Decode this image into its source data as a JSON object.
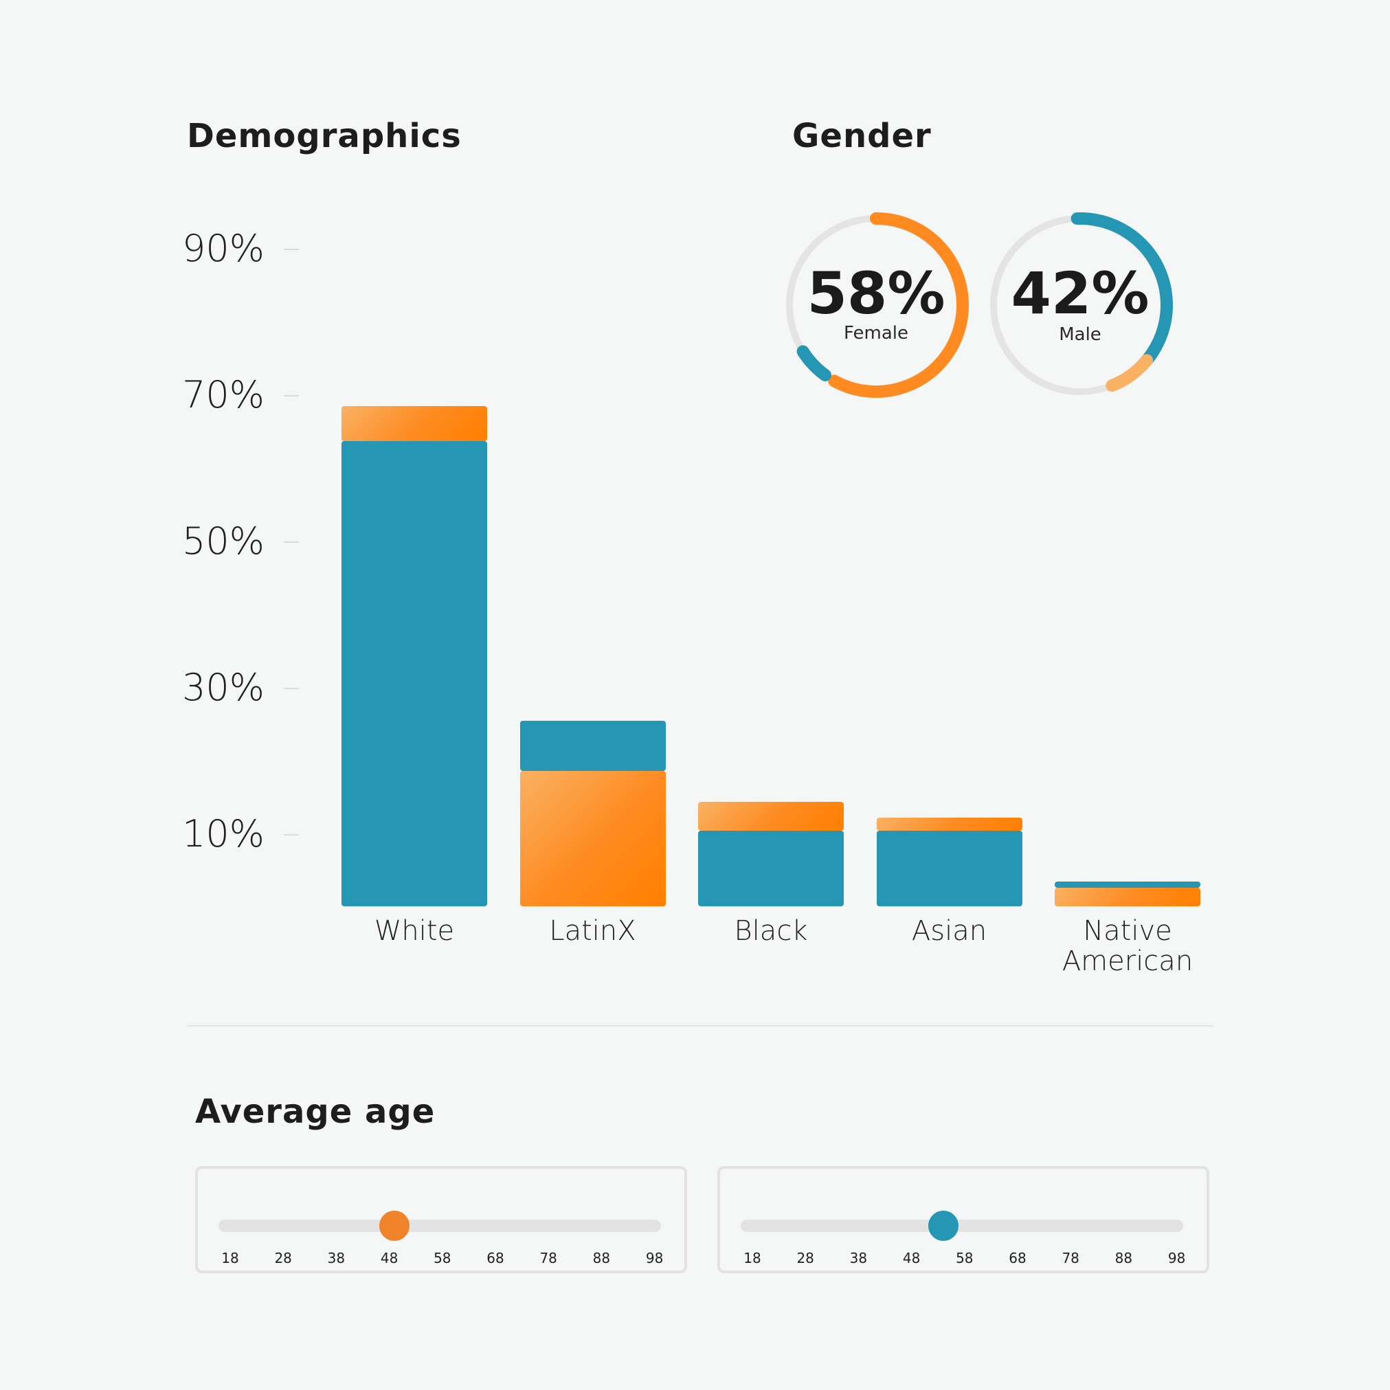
{
  "demographics": {
    "title": "Demographics"
  },
  "gender": {
    "title": "Gender",
    "female": {
      "percent": "58%",
      "label": "Female",
      "value": 58,
      "color": "#ff8a1f"
    },
    "male": {
      "percent": "42%",
      "label": "Male",
      "value": 42,
      "color": "#2596b3"
    }
  },
  "chart_data": {
    "type": "bar",
    "stacked": true,
    "title": "Demographics",
    "y_tick_labels": [
      "90%",
      "70%",
      "50%",
      "30%",
      "10%"
    ],
    "y_ticks": [
      90,
      70,
      50,
      30,
      10
    ],
    "ylim": [
      0,
      100
    ],
    "categories": [
      "White",
      "LatinX",
      "Black",
      "Asian",
      "Native\nAmerican"
    ],
    "series": [
      {
        "color": "#2596b3",
        "values": [
          63.5,
          6.8,
          10.3,
          10.3,
          0.9
        ]
      },
      {
        "color": "#ff8a1f",
        "values": [
          4.8,
          18.5,
          4.0,
          1.8,
          2.5
        ]
      }
    ],
    "stack_order": [
      [
        "blue",
        "orange"
      ],
      [
        "orange",
        "blue"
      ],
      [
        "blue",
        "orange"
      ],
      [
        "blue",
        "orange"
      ],
      [
        "orange",
        "blue"
      ]
    ],
    "grid": false,
    "legend": "none"
  },
  "average_age": {
    "title": "Average age",
    "sliders": [
      {
        "ticks": [
          "18",
          "28",
          "38",
          "48",
          "58",
          "68",
          "78",
          "88",
          "98"
        ],
        "value": 49,
        "color": "#f0822a"
      },
      {
        "ticks": [
          "18",
          "28",
          "38",
          "48",
          "58",
          "68",
          "78",
          "88",
          "98"
        ],
        "value": 54,
        "color": "#2596b3"
      }
    ]
  }
}
